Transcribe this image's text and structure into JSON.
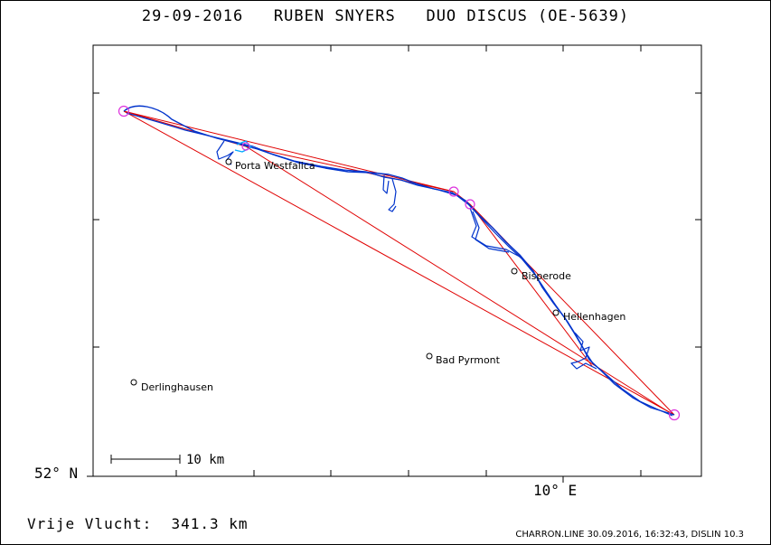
{
  "header": {
    "date": "29-09-2016",
    "pilot": "RUBEN SNYERS",
    "glider": "DUO DISCUS (OE-5639)"
  },
  "axes": {
    "lat_label": "52° N",
    "lon_label": "10° E"
  },
  "places": [
    {
      "name": "Porta Westfalica"
    },
    {
      "name": "Bisperode"
    },
    {
      "name": "Hellenhagen"
    },
    {
      "name": "Bad Pyrmont"
    },
    {
      "name": "Derlinghausen"
    }
  ],
  "scale_bar": {
    "label": "10 km"
  },
  "summary": {
    "free_flight_label": "Vrije Vlucht:",
    "free_flight_value": "341.3 km"
  },
  "footer": {
    "text": "CHARRON.LINE 30.09.2016, 16:32:43, DISLIN 10.3"
  },
  "colors": {
    "task_line": "#e00000",
    "track": "#0033cc",
    "track_alt": "#00aaff",
    "turnpoint": "#dd33dd"
  }
}
